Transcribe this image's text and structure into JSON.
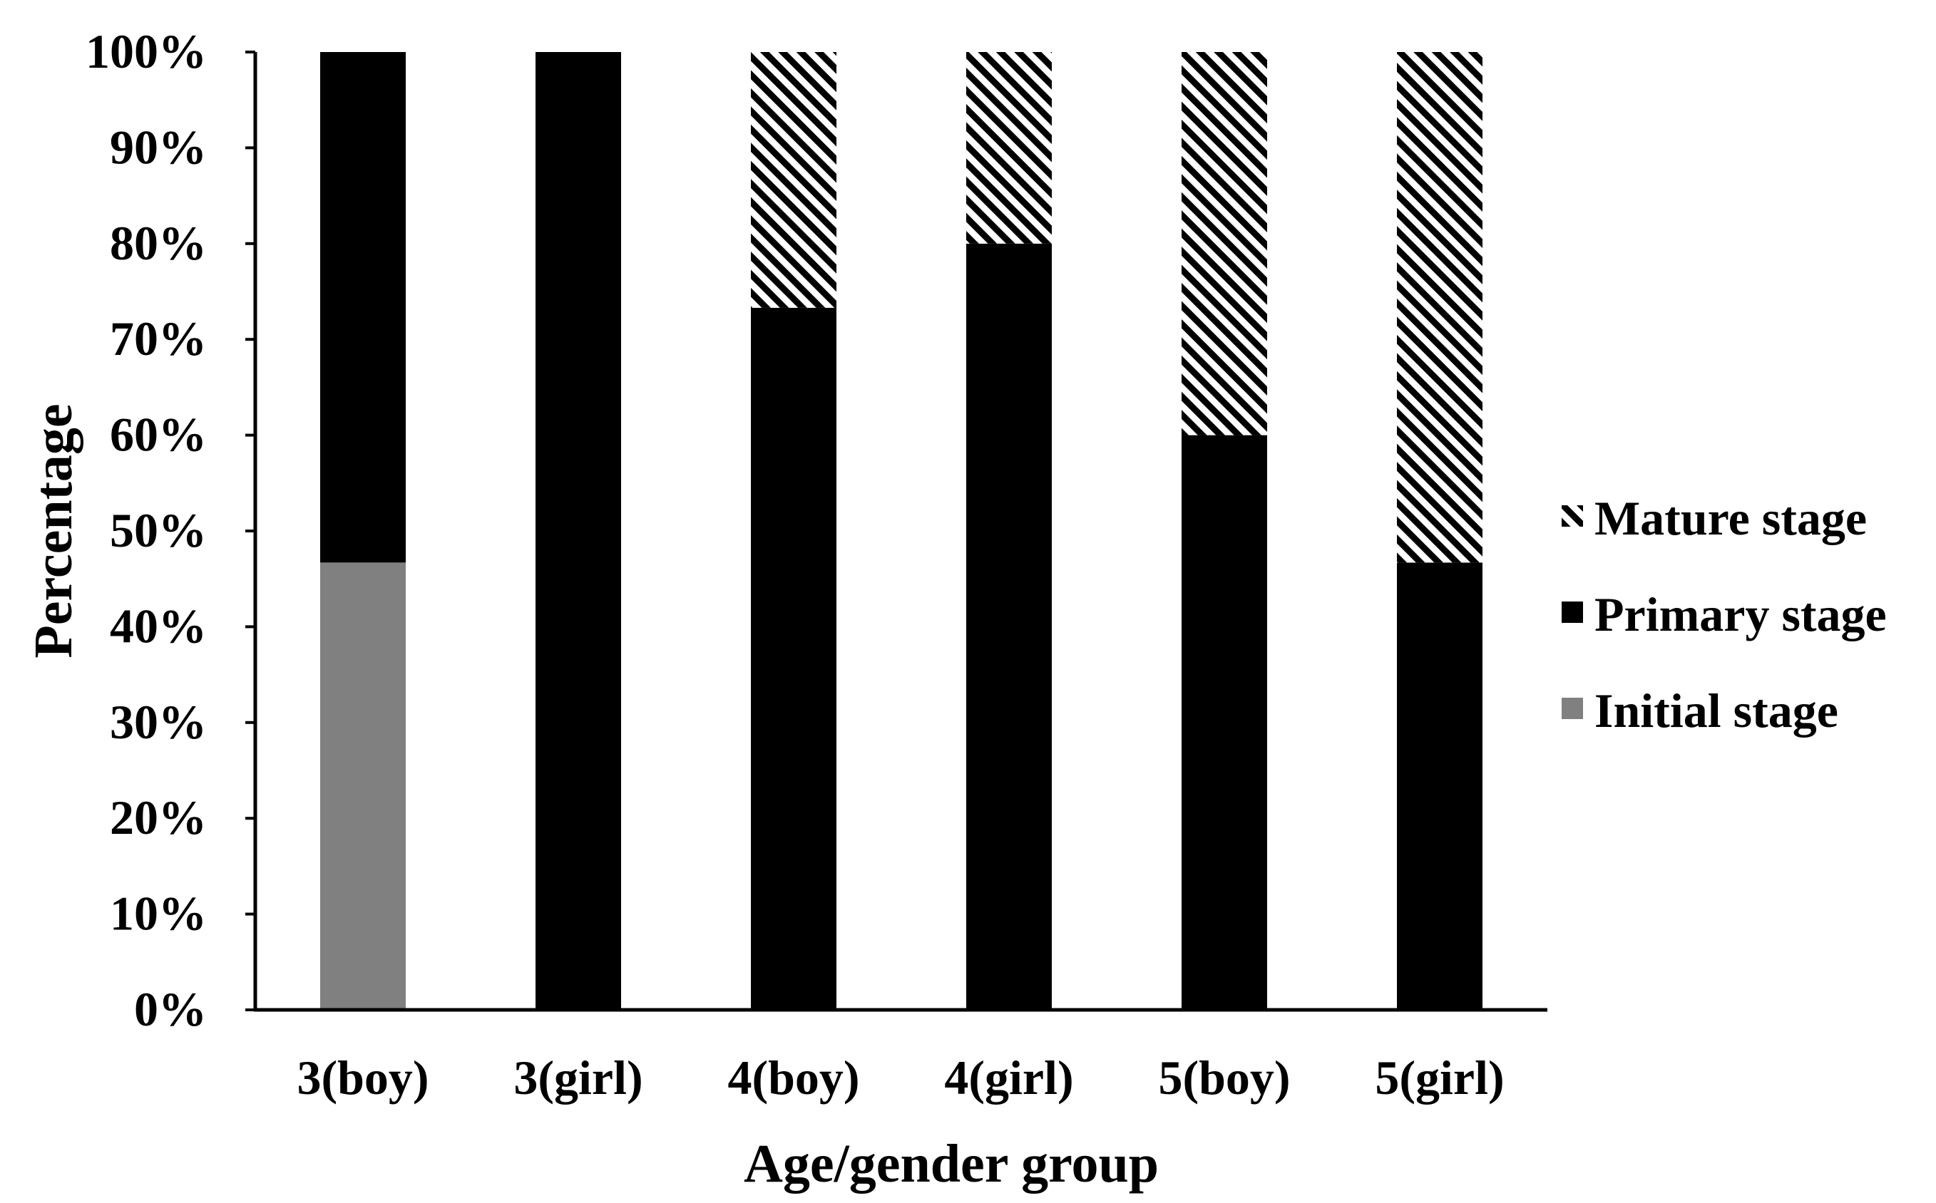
{
  "chart_data": {
    "type": "bar",
    "stacked": true,
    "categories": [
      "3(boy)",
      "3(girl)",
      "4(boy)",
      "4(girl)",
      "5(boy)",
      "5(girl)"
    ],
    "series": [
      {
        "name": "Initial stage",
        "values": [
          46.7,
          0,
          0,
          0,
          0,
          0
        ],
        "color": "#808080",
        "pattern": "solid"
      },
      {
        "name": "Primary stage",
        "values": [
          53.3,
          100,
          73.3,
          80,
          60,
          46.7
        ],
        "color": "#000000",
        "pattern": "solid"
      },
      {
        "name": "Mature stage",
        "values": [
          0,
          0,
          26.7,
          20,
          40,
          53.3
        ],
        "color": "#000000",
        "pattern": "diagonal-hatch"
      }
    ],
    "legend_order": [
      "Mature stage",
      "Primary stage",
      "Initial stage"
    ],
    "legend_position": "right",
    "yticks": [
      "0%",
      "10%",
      "20%",
      "30%",
      "40%",
      "50%",
      "60%",
      "70%",
      "80%",
      "90%",
      "100%"
    ],
    "xlabel": "Age/gender group",
    "ylabel": "Percentage",
    "ylim": [
      0,
      100
    ],
    "grid": false
  }
}
